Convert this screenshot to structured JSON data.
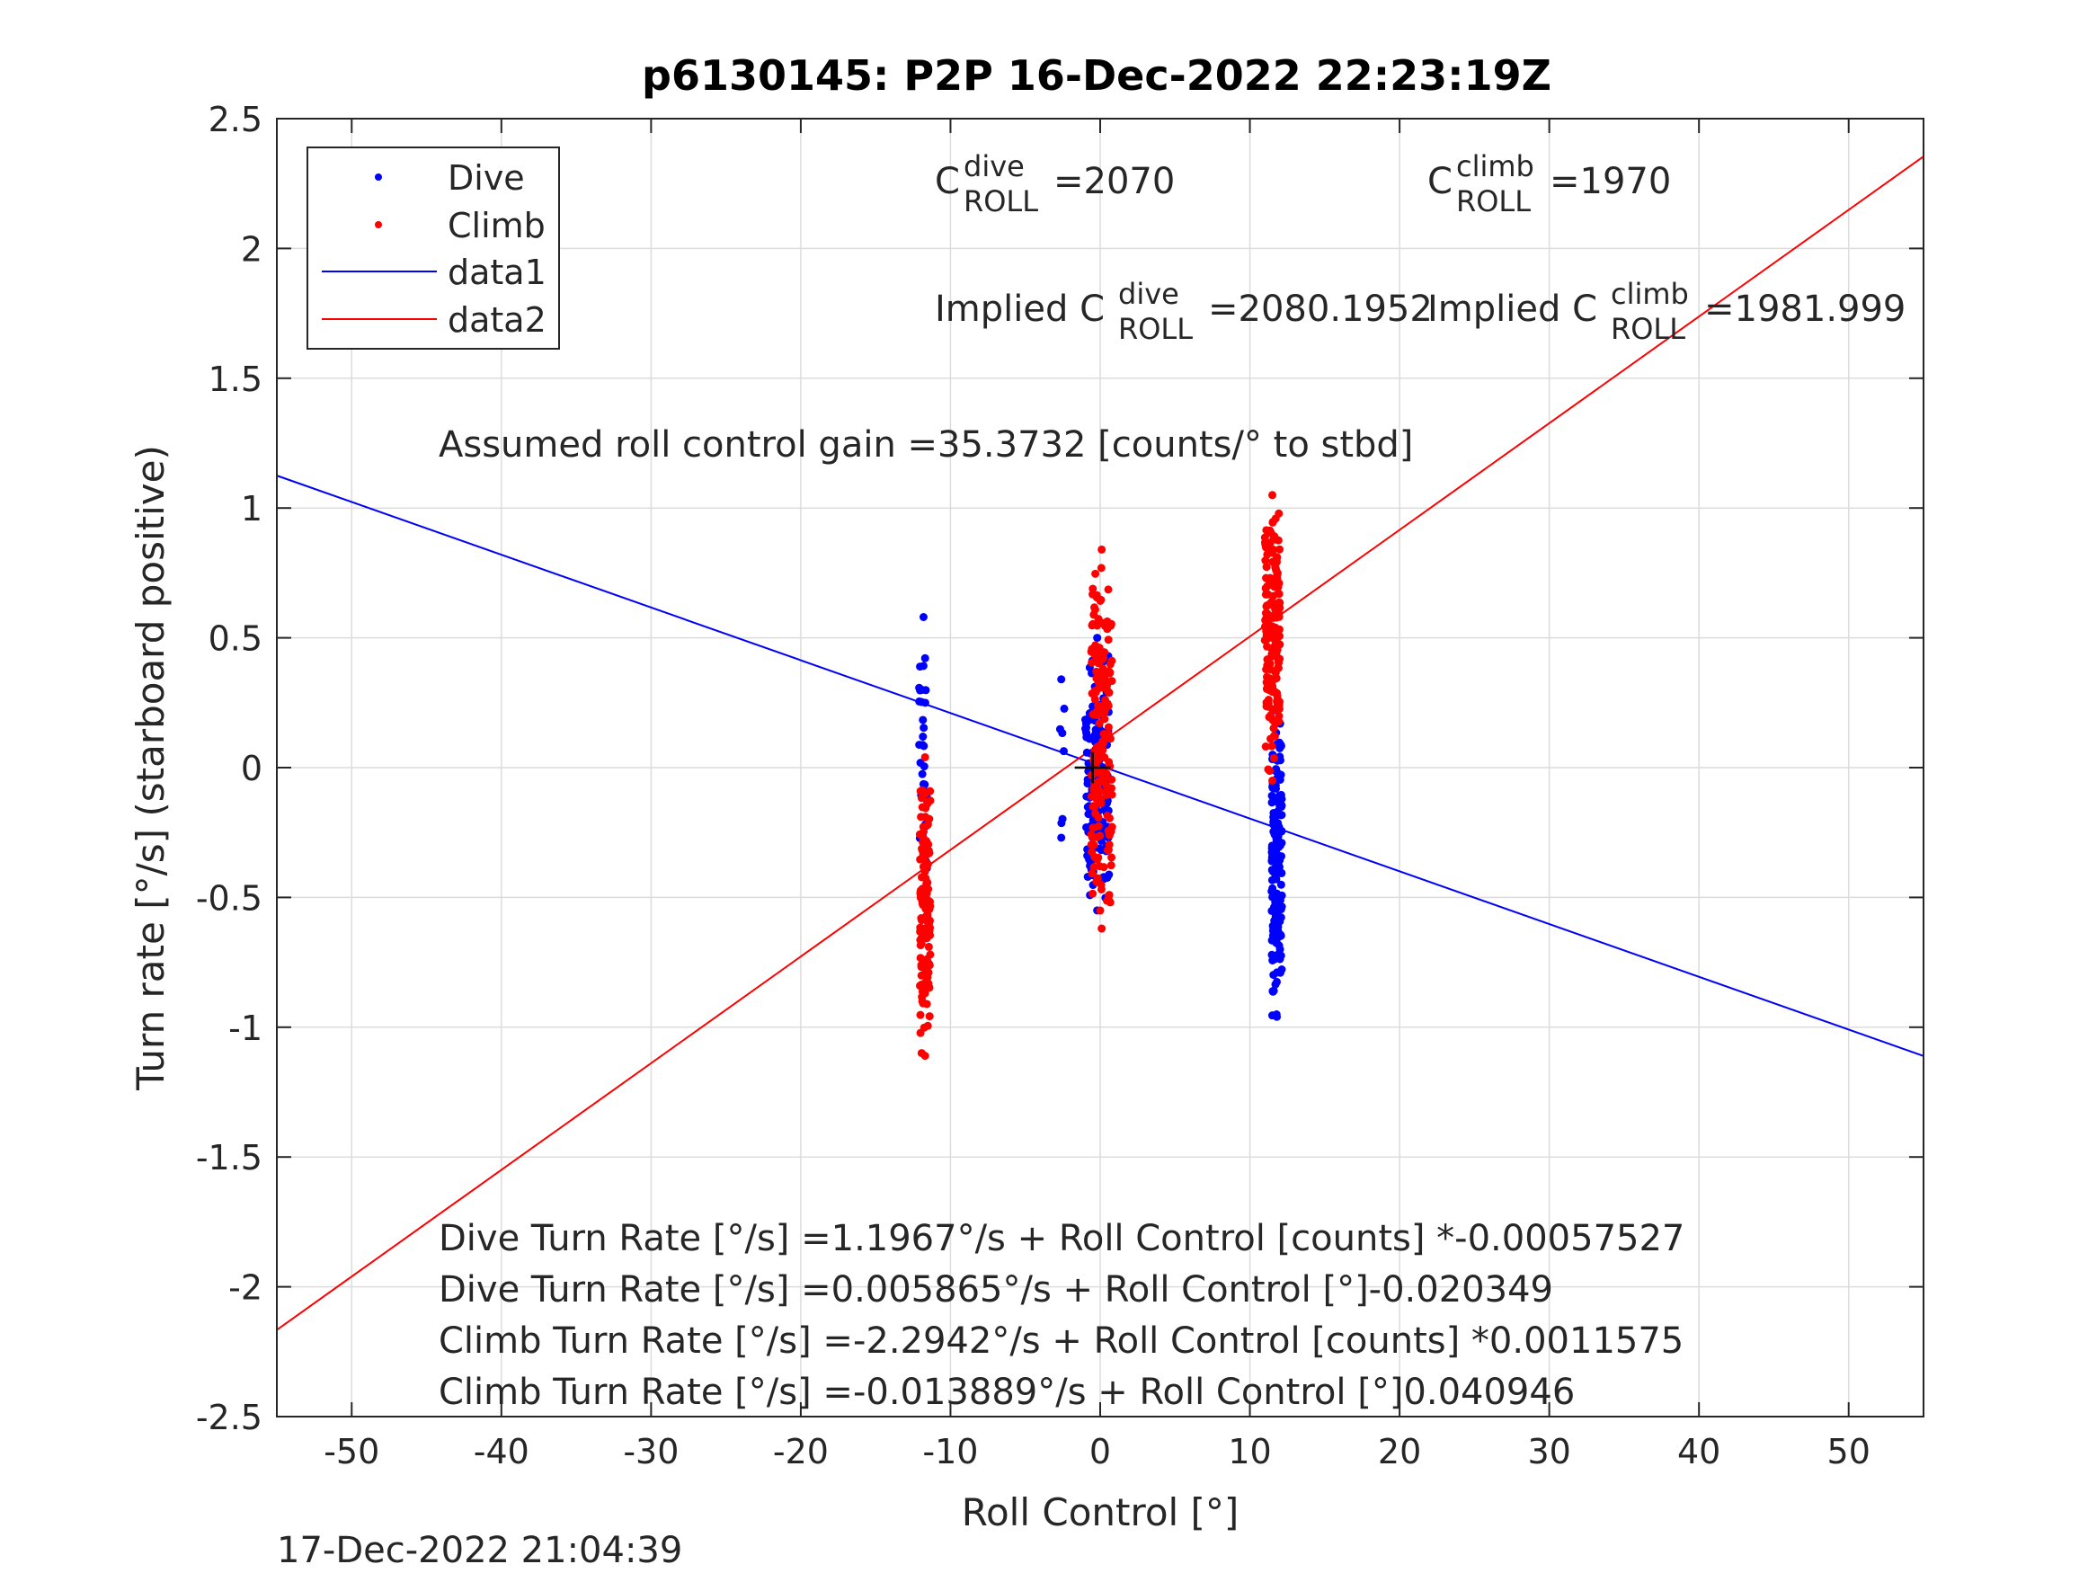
{
  "chart_data": {
    "type": "scatter",
    "title": "p6130145: P2P 16-Dec-2022 22:23:19Z",
    "xlabel": "Roll Control [°]",
    "ylabel": "Turn rate [°/s] (starboard positive)",
    "xlim": [
      -55,
      55
    ],
    "ylim": [
      -2.5,
      2.5
    ],
    "xticks": [
      "-50",
      "-40",
      "-30",
      "-20",
      "-10",
      "0",
      "10",
      "20",
      "30",
      "40",
      "50"
    ],
    "yticks": [
      "2.5",
      "2",
      "1.5",
      "1",
      "0.5",
      "0",
      "-0.5",
      "-1",
      "-1.5",
      "-2",
      "-2.5"
    ],
    "grid": true,
    "legend": {
      "placement": "top-left",
      "entries": [
        {
          "label": "Dive",
          "color": "#0000ff",
          "marker": "dot"
        },
        {
          "label": "Climb",
          "color": "#ff0000",
          "marker": "dot"
        },
        {
          "label": "data1",
          "color": "#0000ff",
          "marker": "line"
        },
        {
          "label": "data2",
          "color": "#ff0000",
          "marker": "line"
        }
      ]
    },
    "lines": [
      {
        "name": "data1",
        "color": "#0000ff",
        "x": [
          -55,
          55
        ],
        "y": [
          1.1249,
          -1.1107
        ]
      },
      {
        "name": "data2",
        "color": "#ff0000",
        "x": [
          -55,
          55
        ],
        "y": [
          -2.1659,
          2.3542
        ]
      }
    ],
    "scatter_clusters": [
      {
        "name": "Dive",
        "color": "#0000ff",
        "x_center": -11.8,
        "x_spread": 0.3,
        "y_min": -0.8,
        "y_max": 0.58,
        "n": 38
      },
      {
        "name": "Dive",
        "color": "#0000ff",
        "x_center": -2.6,
        "x_spread": 0.2,
        "y_min": -0.27,
        "y_max": 0.34,
        "n": 6
      },
      {
        "name": "Dive",
        "color": "#0000ff",
        "x_center": -0.2,
        "x_spread": 0.8,
        "y_min": -0.55,
        "y_max": 0.5,
        "n": 150
      },
      {
        "name": "Dive",
        "color": "#0000ff",
        "x_center": 11.8,
        "x_spread": 0.35,
        "y_min": -0.96,
        "y_max": 0.22,
        "n": 170
      },
      {
        "name": "Climb",
        "color": "#ff0000",
        "x_center": -11.7,
        "x_spread": 0.35,
        "y_min": -1.11,
        "y_max": 0.04,
        "n": 130
      },
      {
        "name": "Climb",
        "color": "#ff0000",
        "x_center": 0.1,
        "x_spread": 0.7,
        "y_min": -0.62,
        "y_max": 0.84,
        "n": 180
      },
      {
        "name": "Climb",
        "color": "#ff0000",
        "x_center": 11.5,
        "x_spread": 0.5,
        "y_min": -0.05,
        "y_max": 1.05,
        "n": 170
      }
    ],
    "crosshair": {
      "x": -0.5,
      "y": 0.0,
      "half_width": 1.2,
      "half_height": 0.06,
      "color": "#000000"
    },
    "annotations": {
      "c_dive_base": "C",
      "c_dive_sup": "dive",
      "c_dive_sub": "ROLL",
      "c_dive_value": "=2070",
      "c_climb_base": "C",
      "c_climb_sup": "climb",
      "c_climb_sub": "ROLL",
      "c_climb_value": "=1970",
      "implied_dive_prefix": "Implied C",
      "implied_dive_sup": "dive",
      "implied_dive_sub": "ROLL",
      "implied_dive_value": "=2080.1952",
      "implied_climb_prefix": "Implied C",
      "implied_climb_sup": "climb",
      "implied_climb_sub": "ROLL",
      "implied_climb_value": "=1981.999",
      "gain": "Assumed roll control gain =35.3732 [counts/° to stbd]",
      "eq1": "Dive Turn Rate [°/s] =1.1967°/s + Roll Control [counts] *-0.00057527",
      "eq2": "Dive Turn Rate [°/s] =0.005865°/s + Roll Control [°]-0.020349",
      "eq3": "Climb Turn Rate [°/s] =-2.2942°/s + Roll Control [counts] *0.0011575",
      "eq4": "Climb Turn Rate [°/s] =-0.013889°/s + Roll Control [°]0.040946"
    },
    "timestamp": "17-Dec-2022 21:04:39"
  }
}
